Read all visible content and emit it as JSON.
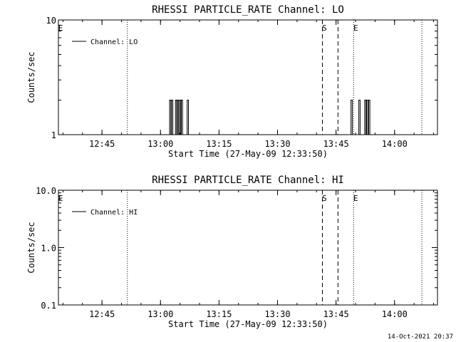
{
  "footer": {
    "timestamp": "14-Oct-2021 20:37"
  },
  "chart_data": [
    {
      "type": "line",
      "title": "RHESSI PARTICLE_RATE Channel: LO",
      "xlabel": "Start Time (27-May-09 12:33:50)",
      "ylabel": "Counts/sec",
      "yscale": "log",
      "xlim": [
        "12:33:50",
        "14:11:00"
      ],
      "ylim": [
        1,
        10
      ],
      "x_ticks": [
        "12:45",
        "13:00",
        "13:15",
        "13:30",
        "13:45",
        "14:00"
      ],
      "y_ticks": [
        "1",
        "10"
      ],
      "legend": {
        "label": "Channel: LO",
        "placement": "top-left"
      },
      "event_marks": [
        {
          "label": "E",
          "time": "12:33:50"
        },
        {
          "label": "S",
          "time": "13:41:30"
        },
        {
          "label": "E",
          "time": "13:49:30"
        }
      ],
      "series": [
        {
          "name": "Channel: LO",
          "points": [
            [
              "13:02:30",
              2
            ],
            [
              "13:03:00",
              2
            ],
            [
              "13:04:00",
              2
            ],
            [
              "13:04:30",
              2
            ],
            [
              "13:05:00",
              2
            ],
            [
              "13:05:30",
              2
            ],
            [
              "13:07:00",
              2
            ],
            [
              "13:49:00",
              2
            ],
            [
              "13:51:00",
              2
            ],
            [
              "13:52:30",
              2
            ],
            [
              "13:53:00",
              2
            ],
            [
              "13:53:30",
              2
            ]
          ]
        }
      ],
      "dotted_times": [
        "12:51:30",
        "13:49:30",
        "14:07:00"
      ],
      "dashed_times": [
        "13:41:30",
        "13:45:30"
      ]
    },
    {
      "type": "line",
      "title": "RHESSI PARTICLE_RATE Channel: HI",
      "xlabel": "Start Time (27-May-09 12:33:50)",
      "ylabel": "Counts/sec",
      "yscale": "log",
      "xlim": [
        "12:33:50",
        "14:11:00"
      ],
      "ylim": [
        0.1,
        10
      ],
      "x_ticks": [
        "12:45",
        "13:00",
        "13:15",
        "13:30",
        "13:45",
        "14:00"
      ],
      "y_ticks": [
        "0.1",
        "1.0",
        "10.0"
      ],
      "legend": {
        "label": "Channel: HI",
        "placement": "top-left"
      },
      "event_marks": [
        {
          "label": "E",
          "time": "12:33:50"
        },
        {
          "label": "S",
          "time": "13:41:30"
        },
        {
          "label": "E",
          "time": "13:49:30"
        }
      ],
      "series": [
        {
          "name": "Channel: HI",
          "points": []
        }
      ],
      "dotted_times": [
        "12:51:30",
        "13:49:30",
        "14:07:00"
      ],
      "dashed_times": [
        "13:41:30",
        "13:45:30"
      ]
    }
  ]
}
